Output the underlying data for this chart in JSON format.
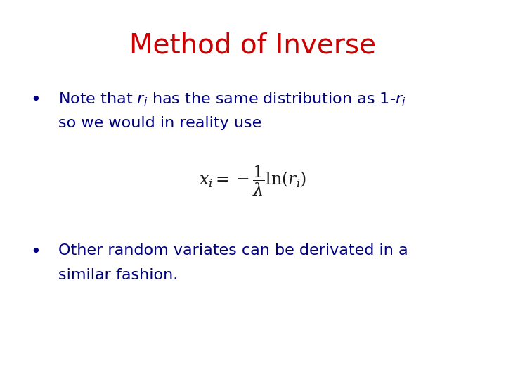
{
  "title": "Method of Inverse",
  "title_color": "#CC0000",
  "title_fontsize": 28,
  "background_color": "#FFFFFF",
  "bullet_color": "#000080",
  "bullet_fontsize": 16,
  "bullet1_line1": "Note that $r_i$ has the same distribution as 1-$r_i$",
  "bullet1_line2": "so we would in reality use",
  "formula_color": "#1a1a1a",
  "formula_fontsize": 17,
  "bullet2_line1": "Other random variates can be derivated in a",
  "bullet2_line2": "similar fashion.",
  "fig_width": 7.2,
  "fig_height": 5.4,
  "dpi": 100
}
